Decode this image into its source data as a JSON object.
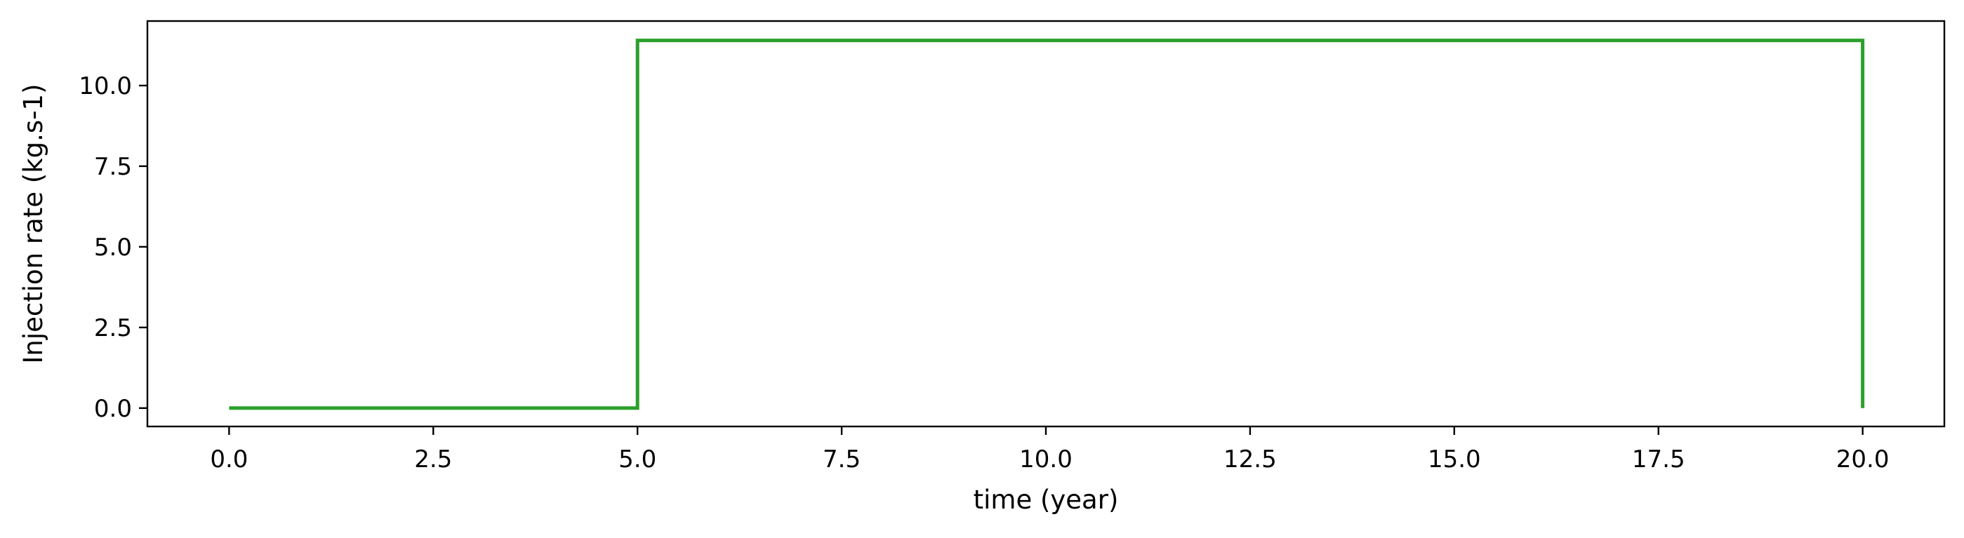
{
  "chart_data": {
    "type": "line",
    "title": "",
    "xlabel": "time (year)",
    "ylabel": "Injection rate (kg.s-1)",
    "xlim": [
      -1.0,
      21.0
    ],
    "ylim": [
      -0.57,
      12.0
    ],
    "xticks": [
      0.0,
      2.5,
      5.0,
      7.5,
      10.0,
      12.5,
      15.0,
      17.5,
      20.0
    ],
    "xtick_labels": [
      "0.0",
      "2.5",
      "5.0",
      "7.5",
      "10.0",
      "12.5",
      "15.0",
      "17.5",
      "20.0"
    ],
    "yticks": [
      0.0,
      2.5,
      5.0,
      7.5,
      10.0
    ],
    "ytick_labels": [
      "0.0",
      "2.5",
      "5.0",
      "7.5",
      "10.0"
    ],
    "grid": false,
    "series": [
      {
        "color": "#2ca02c",
        "x": [
          0.0,
          5.0,
          5.0,
          20.0,
          20.0
        ],
        "y": [
          0.0,
          0.0,
          11.4,
          11.4,
          0.0
        ]
      }
    ]
  }
}
